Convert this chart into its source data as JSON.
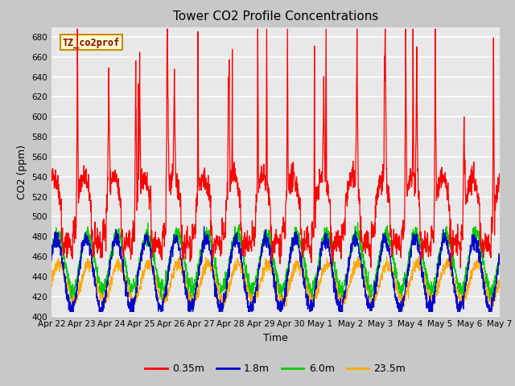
{
  "title": "Tower CO2 Profile Concentrations",
  "xlabel": "Time",
  "ylabel": "CO2 (ppm)",
  "ylim": [
    400,
    690
  ],
  "yticks": [
    400,
    420,
    440,
    460,
    480,
    500,
    520,
    540,
    560,
    580,
    600,
    620,
    640,
    660,
    680
  ],
  "colors": {
    "0.35m": "#ff0000",
    "1.8m": "#0000cc",
    "6.0m": "#00cc00",
    "23.5m": "#ffaa00"
  },
  "legend_label": "TZ_co2prof",
  "legend_box_facecolor": "#ffffcc",
  "legend_box_edgecolor": "#cc8800",
  "fig_facecolor": "#c8c8c8",
  "axes_facecolor": "#e8e8e8",
  "tick_labels": [
    "Apr 22",
    "Apr 23",
    "Apr 24",
    "Apr 25",
    "Apr 26",
    "Apr 27",
    "Apr 28",
    "Apr 29",
    "Apr 30",
    "May 1",
    "May 2",
    "May 3",
    "May 4",
    "May 5",
    "May 6",
    "May 7"
  ],
  "title_fontsize": 11,
  "axis_label_fontsize": 9,
  "tick_fontsize": 7.5,
  "line_width": 0.9
}
